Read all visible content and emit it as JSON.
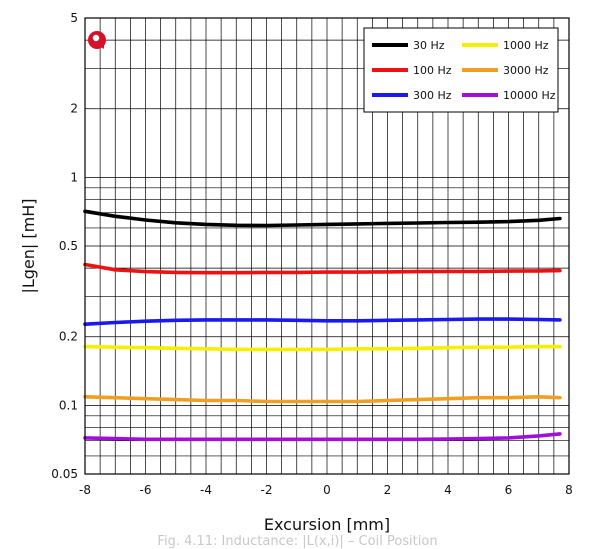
{
  "chart_data": {
    "type": "line",
    "title": "",
    "xlabel": "Excursion [mm]",
    "ylabel": "|Lgen| [mH]",
    "xlim": [
      -8,
      8
    ],
    "ylim": [
      0.05,
      5
    ],
    "y_scale": "log",
    "x_ticks": [
      "-8",
      "-6",
      "-4",
      "-2",
      "0",
      "2",
      "4",
      "6",
      "8"
    ],
    "y_ticks": [
      "0.05",
      "0.1",
      "0.2",
      "0.5",
      "1",
      "2",
      "5"
    ],
    "grid": true,
    "legend_position": "top-right",
    "x": [
      -8,
      -7,
      -6,
      -5,
      -4,
      -3,
      -2,
      -1,
      0,
      1,
      2,
      3,
      4,
      5,
      6,
      7,
      7.7
    ],
    "series": [
      {
        "name": "30 Hz",
        "color": "#000000",
        "values": [
          0.71,
          0.675,
          0.65,
          0.632,
          0.622,
          0.616,
          0.615,
          0.618,
          0.622,
          0.625,
          0.628,
          0.631,
          0.634,
          0.636,
          0.64,
          0.648,
          0.66
        ]
      },
      {
        "name": "100 Hz",
        "color": "#ee1111",
        "values": [
          0.415,
          0.393,
          0.386,
          0.383,
          0.382,
          0.382,
          0.383,
          0.383,
          0.384,
          0.384,
          0.385,
          0.386,
          0.387,
          0.387,
          0.388,
          0.389,
          0.39
        ]
      },
      {
        "name": "300 Hz",
        "color": "#1a1aee",
        "values": [
          0.227,
          0.231,
          0.234,
          0.236,
          0.237,
          0.237,
          0.237,
          0.236,
          0.235,
          0.235,
          0.236,
          0.237,
          0.238,
          0.239,
          0.239,
          0.238,
          0.237
        ]
      },
      {
        "name": "1000 Hz",
        "color": "#f5f000",
        "values": [
          0.181,
          0.18,
          0.179,
          0.178,
          0.177,
          0.176,
          0.176,
          0.176,
          0.176,
          0.177,
          0.177,
          0.178,
          0.179,
          0.18,
          0.18,
          0.181,
          0.181
        ]
      },
      {
        "name": "3000 Hz",
        "color": "#f0a020",
        "values": [
          0.109,
          0.108,
          0.107,
          0.106,
          0.105,
          0.105,
          0.104,
          0.104,
          0.104,
          0.104,
          0.105,
          0.106,
          0.107,
          0.108,
          0.108,
          0.109,
          0.108
        ]
      },
      {
        "name": "10000 Hz",
        "color": "#a010d8",
        "values": [
          0.072,
          0.0715,
          0.071,
          0.071,
          0.071,
          0.071,
          0.071,
          0.071,
          0.071,
          0.071,
          0.071,
          0.071,
          0.0712,
          0.0715,
          0.072,
          0.0735,
          0.075
        ]
      }
    ]
  },
  "caption": "Fig. 4.11: Inductance: |L(x,i)| – Coil Position"
}
